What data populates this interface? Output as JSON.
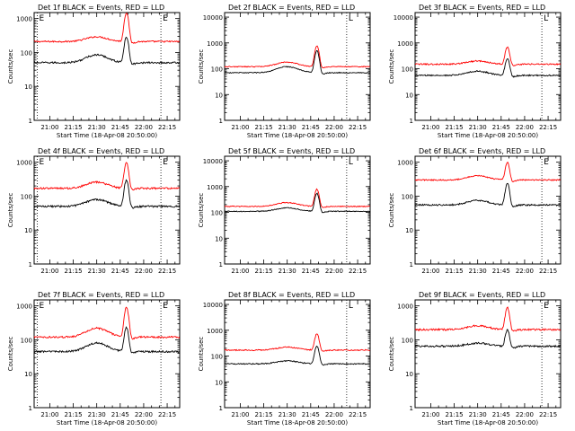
{
  "chart_data": [
    {
      "type": "line",
      "title": "Det 1f BLACK = Events, RED = LLD",
      "xlabel": "Start Time (18-Apr-08 20:50:00)",
      "ylabel": "Counts/sec",
      "x_ticks": [
        "21:00",
        "21:15",
        "21:30",
        "21:45",
        "22:00",
        "22:15"
      ],
      "y_ticks": [
        "1",
        "10",
        "100",
        "1000"
      ],
      "ylim": [
        1,
        1500
      ],
      "yscale": "log",
      "annotations": [
        {
          "text": "E",
          "time": "20:52"
        },
        {
          "text": "E",
          "time": "22:11"
        }
      ],
      "series": [
        {
          "name": "RED",
          "color": "#ff0000",
          "base": 210,
          "hump": 290,
          "peak": 1500,
          "noise": 0.05
        },
        {
          "name": "BLACK",
          "color": "#000000",
          "base": 50,
          "hump": 85,
          "peak": 290,
          "noise": 0.06
        }
      ]
    },
    {
      "type": "line",
      "title": "Det 2f BLACK = Events, RED = LLD",
      "xlabel": "Start Time (18-Apr-08 20:50:00)",
      "ylabel": "Counts/sec",
      "x_ticks": [
        "21:00",
        "21:15",
        "21:30",
        "21:45",
        "22:00",
        "22:15"
      ],
      "y_ticks": [
        "1",
        "10",
        "100",
        "1000",
        "10000"
      ],
      "ylim": [
        1,
        15000
      ],
      "yscale": "log",
      "annotations": [
        {
          "text": "L",
          "time": "22:08"
        }
      ],
      "series": [
        {
          "name": "RED",
          "color": "#ff0000",
          "base": 120,
          "hump": 180,
          "peak": 750,
          "noise": 0.04
        },
        {
          "name": "BLACK",
          "color": "#000000",
          "base": 70,
          "hump": 120,
          "peak": 500,
          "noise": 0.04
        }
      ]
    },
    {
      "type": "line",
      "title": "Det 3f BLACK = Events, RED = LLD",
      "xlabel": "Start Time (18-Apr-08 20:50:00)",
      "ylabel": "Counts/sec",
      "x_ticks": [
        "21:00",
        "21:15",
        "21:30",
        "21:45",
        "22:00",
        "22:15"
      ],
      "y_ticks": [
        "1",
        "10",
        "100",
        "1000",
        "10000"
      ],
      "ylim": [
        1,
        15000
      ],
      "yscale": "log",
      "annotations": [
        {
          "text": "L",
          "time": "22:11"
        }
      ],
      "series": [
        {
          "name": "RED",
          "color": "#ff0000",
          "base": 150,
          "hump": 200,
          "peak": 700,
          "noise": 0.06
        },
        {
          "name": "BLACK",
          "color": "#000000",
          "base": 55,
          "hump": 80,
          "peak": 250,
          "noise": 0.06
        }
      ]
    },
    {
      "type": "line",
      "title": "Det 4f BLACK = Events, RED = LLD",
      "xlabel": "",
      "ylabel": "Counts/sec",
      "x_ticks": [
        "21:00",
        "21:15",
        "21:30",
        "21:45",
        "22:00",
        "22:15"
      ],
      "y_ticks": [
        "1",
        "10",
        "100",
        "1000"
      ],
      "ylim": [
        1,
        1500
      ],
      "yscale": "log",
      "annotations": [
        {
          "text": "E",
          "time": "20:52"
        },
        {
          "text": "E",
          "time": "22:11"
        }
      ],
      "series": [
        {
          "name": "RED",
          "color": "#ff0000",
          "base": 170,
          "hump": 260,
          "peak": 1000,
          "noise": 0.06
        },
        {
          "name": "BLACK",
          "color": "#000000",
          "base": 50,
          "hump": 80,
          "peak": 300,
          "noise": 0.06
        }
      ]
    },
    {
      "type": "line",
      "title": "Det 5f BLACK = Events, RED = LLD",
      "xlabel": "",
      "ylabel": "Counts/sec",
      "x_ticks": [
        "21:00",
        "21:15",
        "21:30",
        "21:45",
        "22:00",
        "22:15"
      ],
      "y_ticks": [
        "1",
        "10",
        "100",
        "1000",
        "10000"
      ],
      "ylim": [
        1,
        15000
      ],
      "yscale": "log",
      "annotations": [
        {
          "text": "L",
          "time": "22:08"
        }
      ],
      "series": [
        {
          "name": "RED",
          "color": "#ff0000",
          "base": 170,
          "hump": 240,
          "peak": 800,
          "noise": 0.04
        },
        {
          "name": "BLACK",
          "color": "#000000",
          "base": 110,
          "hump": 150,
          "peak": 550,
          "noise": 0.04
        }
      ]
    },
    {
      "type": "line",
      "title": "Det 6f BLACK = Events, RED = LLD",
      "xlabel": "",
      "ylabel": "Counts/sec",
      "x_ticks": [
        "21:00",
        "21:15",
        "21:30",
        "21:45",
        "22:00",
        "22:15"
      ],
      "y_ticks": [
        "1",
        "10",
        "100",
        "1000"
      ],
      "ylim": [
        1,
        1500
      ],
      "yscale": "log",
      "annotations": [
        {
          "text": "E",
          "time": "22:11"
        }
      ],
      "series": [
        {
          "name": "RED",
          "color": "#ff0000",
          "base": 300,
          "hump": 400,
          "peak": 1000,
          "noise": 0.04
        },
        {
          "name": "BLACK",
          "color": "#000000",
          "base": 55,
          "hump": 75,
          "peak": 240,
          "noise": 0.05
        }
      ]
    },
    {
      "type": "line",
      "title": "Det 7f BLACK = Events, RED = LLD",
      "xlabel": "Start Time (18-Apr-08 20:50:00)",
      "ylabel": "Counts/sec",
      "x_ticks": [
        "21:00",
        "21:15",
        "21:30",
        "21:45",
        "22:00",
        "22:15"
      ],
      "y_ticks": [
        "1",
        "10",
        "100",
        "1000"
      ],
      "ylim": [
        1,
        1500
      ],
      "yscale": "log",
      "annotations": [
        {
          "text": "E",
          "time": "20:52"
        },
        {
          "text": "E",
          "time": "22:11"
        }
      ],
      "series": [
        {
          "name": "RED",
          "color": "#ff0000",
          "base": 120,
          "hump": 220,
          "peak": 900,
          "noise": 0.06
        },
        {
          "name": "BLACK",
          "color": "#000000",
          "base": 45,
          "hump": 80,
          "peak": 230,
          "noise": 0.06
        }
      ]
    },
    {
      "type": "line",
      "title": "Det 8f BLACK = Events, RED = LLD",
      "xlabel": "Start Time (18-Apr-08 20:50:00)",
      "ylabel": "Counts/sec",
      "x_ticks": [
        "21:00",
        "21:15",
        "21:30",
        "21:45",
        "22:00",
        "22:15"
      ],
      "y_ticks": [
        "1",
        "10",
        "100",
        "1000",
        "10000"
      ],
      "ylim": [
        1,
        15000
      ],
      "yscale": "log",
      "annotations": [
        {
          "text": "L",
          "time": "22:08"
        }
      ],
      "series": [
        {
          "name": "RED",
          "color": "#ff0000",
          "base": 170,
          "hump": 220,
          "peak": 750,
          "noise": 0.05
        },
        {
          "name": "BLACK",
          "color": "#000000",
          "base": 50,
          "hump": 65,
          "peak": 250,
          "noise": 0.05
        }
      ]
    },
    {
      "type": "line",
      "title": "Det 9f BLACK = Events, RED = LLD",
      "xlabel": "Start Time (18-Apr-08 20:50:00)",
      "ylabel": "Counts/sec",
      "x_ticks": [
        "21:00",
        "21:15",
        "21:30",
        "21:45",
        "22:00",
        "22:15"
      ],
      "y_ticks": [
        "1",
        "10",
        "100",
        "1000"
      ],
      "ylim": [
        1,
        1500
      ],
      "yscale": "log",
      "annotations": [
        {
          "text": "E",
          "time": "22:11"
        }
      ],
      "series": [
        {
          "name": "RED",
          "color": "#ff0000",
          "base": 200,
          "hump": 260,
          "peak": 900,
          "noise": 0.06
        },
        {
          "name": "BLACK",
          "color": "#000000",
          "base": 65,
          "hump": 80,
          "peak": 200,
          "noise": 0.06
        }
      ]
    }
  ]
}
